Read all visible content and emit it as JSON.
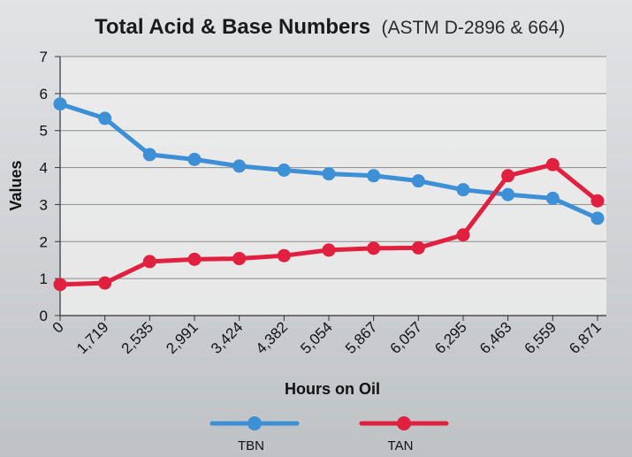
{
  "chart_data": {
    "type": "line",
    "title": "Total Acid & Base Numbers",
    "subtitle": "(ASTM D-2896 & 664)",
    "xlabel": "Hours on Oil",
    "ylabel": "Values",
    "ylim": [
      0,
      7
    ],
    "yticks": [
      "0",
      "1",
      "2",
      "3",
      "4",
      "5",
      "6",
      "7"
    ],
    "categories": [
      "0",
      "1,719",
      "2,535",
      "2,991",
      "3,424",
      "4,382",
      "5,054",
      "5,867",
      "6,057",
      "6,295",
      "6,463",
      "6,559",
      "6,871"
    ],
    "grid": "horizontal",
    "legend_position": "bottom",
    "series": [
      {
        "name": "TBN",
        "color": "#3d8fd6",
        "values": [
          5.72,
          5.33,
          4.35,
          4.22,
          4.04,
          3.93,
          3.83,
          3.78,
          3.64,
          3.4,
          3.27,
          3.17,
          2.63
        ]
      },
      {
        "name": "TAN",
        "color": "#e0203e",
        "values": [
          0.84,
          0.88,
          1.46,
          1.52,
          1.54,
          1.62,
          1.77,
          1.82,
          1.83,
          2.18,
          3.78,
          4.08,
          3.1
        ]
      }
    ]
  }
}
